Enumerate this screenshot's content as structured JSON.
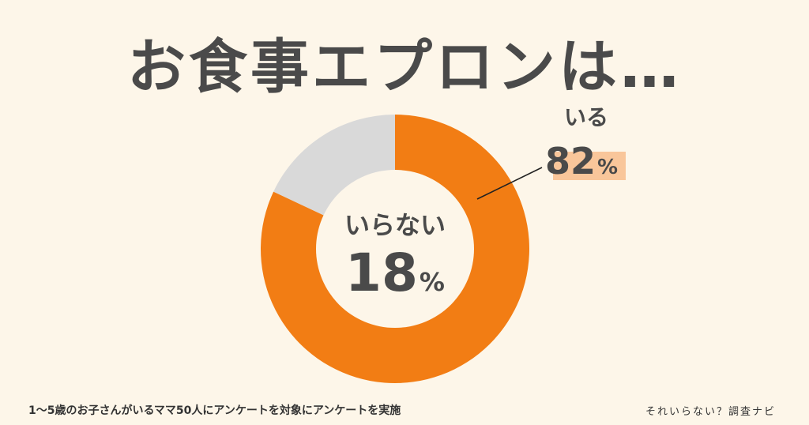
{
  "chart_data": {
    "type": "pie",
    "title": "お食事エプロンは…",
    "categories": [
      "いる",
      "いらない"
    ],
    "values": [
      82,
      18
    ],
    "unit": "%",
    "colors": [
      "#f27d14",
      "#d9d9d9"
    ]
  },
  "footnote": "1〜5歳のお子さんがいるママ50人にアンケートを対象にアンケートを実施",
  "brand": "それいらない？調査ナビ"
}
